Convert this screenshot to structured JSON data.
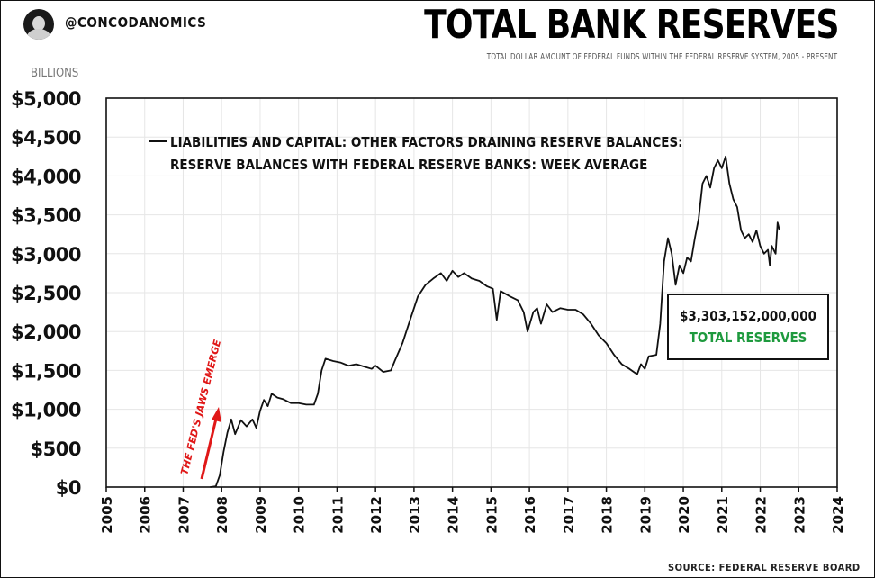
{
  "header": {
    "handle": "@CONCODANOMICS",
    "title": "TOTAL BANK RESERVES",
    "subtitle": "TOTAL DOLLAR AMOUNT OF FEDERAL FUNDS WITHIN THE FEDERAL RESERVE SYSTEM, 2005 - PRESENT"
  },
  "callout": {
    "amount": "$3,303,152,000,000",
    "label": "TOTAL RESERVES"
  },
  "source": "SOURCE: FEDERAL RESERVE BOARD",
  "colors": {
    "line": "#111111",
    "grid": "#e6e6e6",
    "arrow": "#e01818",
    "highlight": "#1e9a3e"
  },
  "chart_data": {
    "type": "line",
    "title": "TOTAL BANK RESERVES",
    "ylabel": "BILLIONS",
    "xlim": [
      2005,
      2024
    ],
    "ylim": [
      0,
      5000
    ],
    "grid": true,
    "x_ticks": [
      "2005",
      "2006",
      "2007",
      "2008",
      "2009",
      "2010",
      "2011",
      "2012",
      "2013",
      "2014",
      "2015",
      "2016",
      "2017",
      "2018",
      "2019",
      "2020",
      "2021",
      "2022",
      "2023",
      "2024"
    ],
    "y_ticks": [
      {
        "value": 0,
        "label": "$0"
      },
      {
        "value": 500,
        "label": "$500"
      },
      {
        "value": 1000,
        "label": "$1,000"
      },
      {
        "value": 1500,
        "label": "$1,500"
      },
      {
        "value": 2000,
        "label": "$2,000"
      },
      {
        "value": 2500,
        "label": "$2,500"
      },
      {
        "value": 3000,
        "label": "$3,000"
      },
      {
        "value": 3500,
        "label": "$3,500"
      },
      {
        "value": 4000,
        "label": "$4,000"
      },
      {
        "value": 4500,
        "label": "$4,500"
      },
      {
        "value": 5000,
        "label": "$5,000"
      }
    ],
    "legend": [
      "LIABILITIES AND CAPITAL: OTHER FACTORS DRAINING RESERVE BALANCES:",
      "RESERVE BALANCES WITH FEDERAL RESERVE BANKS: WEEK AVERAGE"
    ],
    "annotation": "THE FED'S JAWS EMERGE",
    "series": [
      {
        "values": [
          [
            2007.7,
            0
          ],
          [
            2007.85,
            10
          ],
          [
            2007.95,
            150
          ],
          [
            2008.05,
            450
          ],
          [
            2008.15,
            700
          ],
          [
            2008.25,
            870
          ],
          [
            2008.35,
            680
          ],
          [
            2008.5,
            860
          ],
          [
            2008.65,
            780
          ],
          [
            2008.8,
            870
          ],
          [
            2008.9,
            760
          ],
          [
            2009.0,
            980
          ],
          [
            2009.1,
            1120
          ],
          [
            2009.2,
            1040
          ],
          [
            2009.3,
            1200
          ],
          [
            2009.45,
            1150
          ],
          [
            2009.6,
            1130
          ],
          [
            2009.8,
            1080
          ],
          [
            2010.0,
            1080
          ],
          [
            2010.2,
            1060
          ],
          [
            2010.4,
            1060
          ],
          [
            2010.5,
            1200
          ],
          [
            2010.6,
            1500
          ],
          [
            2010.7,
            1650
          ],
          [
            2010.9,
            1620
          ],
          [
            2011.1,
            1600
          ],
          [
            2011.3,
            1560
          ],
          [
            2011.5,
            1580
          ],
          [
            2011.7,
            1550
          ],
          [
            2011.9,
            1520
          ],
          [
            2012.0,
            1560
          ],
          [
            2012.2,
            1480
          ],
          [
            2012.4,
            1500
          ],
          [
            2012.5,
            1620
          ],
          [
            2012.7,
            1850
          ],
          [
            2012.9,
            2150
          ],
          [
            2013.1,
            2450
          ],
          [
            2013.3,
            2600
          ],
          [
            2013.5,
            2680
          ],
          [
            2013.7,
            2750
          ],
          [
            2013.85,
            2650
          ],
          [
            2014.0,
            2780
          ],
          [
            2014.15,
            2700
          ],
          [
            2014.3,
            2750
          ],
          [
            2014.5,
            2680
          ],
          [
            2014.7,
            2650
          ],
          [
            2014.9,
            2580
          ],
          [
            2015.05,
            2550
          ],
          [
            2015.15,
            2150
          ],
          [
            2015.25,
            2520
          ],
          [
            2015.5,
            2450
          ],
          [
            2015.7,
            2400
          ],
          [
            2015.85,
            2250
          ],
          [
            2015.95,
            2000
          ],
          [
            2016.1,
            2250
          ],
          [
            2016.2,
            2300
          ],
          [
            2016.3,
            2100
          ],
          [
            2016.45,
            2350
          ],
          [
            2016.6,
            2250
          ],
          [
            2016.8,
            2300
          ],
          [
            2017.0,
            2280
          ],
          [
            2017.2,
            2280
          ],
          [
            2017.4,
            2220
          ],
          [
            2017.6,
            2100
          ],
          [
            2017.8,
            1950
          ],
          [
            2018.0,
            1850
          ],
          [
            2018.2,
            1700
          ],
          [
            2018.4,
            1580
          ],
          [
            2018.6,
            1520
          ],
          [
            2018.8,
            1450
          ],
          [
            2018.9,
            1580
          ],
          [
            2019.0,
            1520
          ],
          [
            2019.1,
            1680
          ],
          [
            2019.3,
            1700
          ],
          [
            2019.4,
            2100
          ],
          [
            2019.5,
            2900
          ],
          [
            2019.6,
            3200
          ],
          [
            2019.7,
            3000
          ],
          [
            2019.8,
            2600
          ],
          [
            2019.9,
            2850
          ],
          [
            2020.0,
            2750
          ],
          [
            2020.1,
            2950
          ],
          [
            2020.2,
            2900
          ],
          [
            2020.3,
            3200
          ],
          [
            2020.4,
            3450
          ],
          [
            2020.5,
            3900
          ],
          [
            2020.6,
            4000
          ],
          [
            2020.7,
            3850
          ],
          [
            2020.8,
            4100
          ],
          [
            2020.9,
            4200
          ],
          [
            2021.0,
            4100
          ],
          [
            2021.1,
            4250
          ],
          [
            2021.2,
            3900
          ],
          [
            2021.3,
            3700
          ],
          [
            2021.4,
            3600
          ],
          [
            2021.5,
            3300
          ],
          [
            2021.6,
            3200
          ],
          [
            2021.7,
            3250
          ],
          [
            2021.8,
            3150
          ],
          [
            2021.9,
            3300
          ],
          [
            2022.0,
            3100
          ],
          [
            2022.1,
            3000
          ],
          [
            2022.2,
            3050
          ],
          [
            2022.25,
            2850
          ],
          [
            2022.3,
            3100
          ],
          [
            2022.4,
            3000
          ],
          [
            2022.45,
            3400
          ],
          [
            2022.5,
            3303
          ]
        ]
      }
    ]
  }
}
